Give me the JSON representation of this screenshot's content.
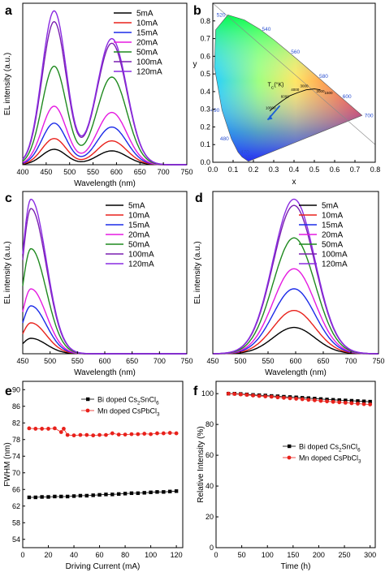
{
  "chart_data": [
    {
      "panel": "a",
      "type": "line",
      "xlabel": "Wavelength (nm)",
      "ylabel": "EL intensity (a.u.)",
      "xlim": [
        400,
        750
      ],
      "xticks": [
        400,
        450,
        500,
        550,
        600,
        650,
        700,
        750
      ],
      "ylim": [
        0,
        1.05
      ],
      "peaks": [
        467,
        590
      ],
      "series": [
        {
          "name": "5mA",
          "color": "#000000",
          "peak1": 0.1,
          "peak2": 0.09
        },
        {
          "name": "10mA",
          "color": "#e8211b",
          "peak1": 0.17,
          "peak2": 0.155
        },
        {
          "name": "15mA",
          "color": "#1b2be8",
          "peak1": 0.27,
          "peak2": 0.245
        },
        {
          "name": "20mA",
          "color": "#e51ae0",
          "peak1": 0.38,
          "peak2": 0.34
        },
        {
          "name": "50mA",
          "color": "#1f8a1f",
          "peak1": 0.64,
          "peak2": 0.57
        },
        {
          "name": "100mA",
          "color": "#7a1fb0",
          "peak1": 0.93,
          "peak2": 0.79
        },
        {
          "name": "120mA",
          "color": "#8a2be2",
          "peak1": 1.0,
          "peak2": 0.82
        }
      ]
    },
    {
      "panel": "b",
      "type": "scatter",
      "xlabel": "x",
      "ylabel": "y",
      "xlim": [
        0,
        0.8
      ],
      "ylim": [
        0,
        0.9
      ],
      "xticks": [
        "0.0",
        "0.1",
        "0.2",
        "0.3",
        "0.4",
        "0.5",
        "0.6",
        "0.7",
        "0.8"
      ],
      "yticks": [
        "0.0",
        "0.1",
        "0.2",
        "0.3",
        "0.4",
        "0.5",
        "0.6",
        "0.7",
        "0.8"
      ],
      "wavelength_labels": [
        {
          "text": "460",
          "x": 0.144,
          "y": 0.03
        },
        {
          "text": "470",
          "x": 0.124,
          "y": 0.058
        },
        {
          "text": "480",
          "x": 0.091,
          "y": 0.133
        },
        {
          "text": "490",
          "x": 0.045,
          "y": 0.295
        },
        {
          "text": "520",
          "x": 0.074,
          "y": 0.834
        },
        {
          "text": "540",
          "x": 0.23,
          "y": 0.754
        },
        {
          "text": "560",
          "x": 0.373,
          "y": 0.624
        },
        {
          "text": "580",
          "x": 0.512,
          "y": 0.487
        },
        {
          "text": "600",
          "x": 0.627,
          "y": 0.372
        },
        {
          "text": "700",
          "x": 0.735,
          "y": 0.265
        }
      ],
      "planckian_label": "T",
      "planckian_label_sub": "C",
      "planckian_label_unit": "(°K)",
      "planckian_temps": [
        "10000",
        "6000",
        "4000",
        "3000",
        "2000",
        "1500"
      ],
      "arrow_from": [
        0.33,
        0.32
      ],
      "arrow_to": [
        0.27,
        0.24
      ]
    },
    {
      "panel": "c",
      "type": "line",
      "xlabel": "Wavelength (nm)",
      "ylabel": "EL intensity (a.u.)",
      "xlim": [
        450,
        750
      ],
      "xticks": [
        450,
        500,
        550,
        600,
        650,
        700,
        750
      ],
      "ylim": [
        0,
        1.05
      ],
      "peak": 465,
      "series": [
        {
          "name": "5mA",
          "color": "#000000",
          "value": 0.1
        },
        {
          "name": "10mA",
          "color": "#e8211b",
          "value": 0.2
        },
        {
          "name": "15mA",
          "color": "#1b2be8",
          "value": 0.31
        },
        {
          "name": "20mA",
          "color": "#e51ae0",
          "value": 0.42
        },
        {
          "name": "50mA",
          "color": "#1f8a1f",
          "value": 0.68
        },
        {
          "name": "100mA",
          "color": "#7a1fb0",
          "value": 0.94
        },
        {
          "name": "120mA",
          "color": "#8a2be2",
          "value": 1.0
        }
      ]
    },
    {
      "panel": "d",
      "type": "line",
      "xlabel": "Wavelength (nm)",
      "ylabel": "EL intensity (a.u.)",
      "xlim": [
        450,
        750
      ],
      "xticks": [
        450,
        500,
        550,
        600,
        650,
        700,
        750
      ],
      "ylim": [
        0,
        1.05
      ],
      "peak": 597,
      "series": [
        {
          "name": "5mA",
          "color": "#000000",
          "value": 0.17
        },
        {
          "name": "10mA",
          "color": "#e8211b",
          "value": 0.28
        },
        {
          "name": "15mA",
          "color": "#1b2be8",
          "value": 0.42
        },
        {
          "name": "20mA",
          "color": "#e51ae0",
          "value": 0.55
        },
        {
          "name": "50mA",
          "color": "#1f8a1f",
          "value": 0.75
        },
        {
          "name": "100mA",
          "color": "#7a1fb0",
          "value": 0.96
        },
        {
          "name": "120mA",
          "color": "#8a2be2",
          "value": 1.0
        }
      ]
    },
    {
      "panel": "e",
      "type": "scatter",
      "xlabel": "Driving Current (mA)",
      "ylabel": "FWHM (nm)",
      "xlim": [
        0,
        125
      ],
      "ylim": [
        52,
        92
      ],
      "xticks": [
        0,
        20,
        40,
        60,
        80,
        100,
        120
      ],
      "yticks": [
        54,
        58,
        62,
        66,
        70,
        74,
        78,
        82,
        86,
        90
      ],
      "legend": [
        {
          "text": "Bi doped Cs",
          "sub": "2",
          "text2": "SnCl",
          "sub2": "6"
        },
        {
          "text": "Mn doped CsPbCl",
          "sub": "3",
          "text2": "",
          "sub2": ""
        }
      ],
      "series": [
        {
          "name": "Bi doped Cs2SnCl6",
          "color": "#000000",
          "marker": "square",
          "x": [
            5,
            10,
            15,
            20,
            25,
            30,
            35,
            40,
            45,
            50,
            55,
            60,
            65,
            70,
            75,
            80,
            85,
            90,
            95,
            100,
            105,
            110,
            115,
            120
          ],
          "y": [
            64.1,
            64.1,
            64.2,
            64.2,
            64.3,
            64.3,
            64.3,
            64.4,
            64.5,
            64.5,
            64.6,
            64.7,
            64.8,
            64.8,
            64.9,
            65.0,
            65.1,
            65.1,
            65.2,
            65.3,
            65.4,
            65.4,
            65.5,
            65.6
          ]
        },
        {
          "name": "Mn doped CsPbCl3",
          "color": "#e8211b",
          "marker": "circle",
          "x": [
            5,
            10,
            15,
            20,
            25,
            30,
            32,
            35,
            40,
            45,
            50,
            55,
            60,
            65,
            70,
            75,
            80,
            85,
            90,
            95,
            100,
            105,
            110,
            115,
            120
          ],
          "y": [
            80.7,
            80.6,
            80.6,
            80.6,
            80.7,
            79.8,
            80.6,
            79.1,
            79.0,
            79.1,
            79.1,
            79.0,
            79.1,
            79.1,
            79.5,
            79.2,
            79.2,
            79.3,
            79.3,
            79.4,
            79.3,
            79.5,
            79.5,
            79.6,
            79.5
          ]
        }
      ]
    },
    {
      "panel": "f",
      "type": "scatter",
      "xlabel": "Time (h)",
      "ylabel": "Relative Intensity (%)",
      "xlim": [
        0,
        310
      ],
      "ylim": [
        0,
        108
      ],
      "xticks": [
        0,
        50,
        100,
        150,
        200,
        250,
        300
      ],
      "yticks": [
        0,
        20,
        40,
        60,
        80,
        100
      ],
      "legend": [
        {
          "text": "Bi  doped Cs",
          "sub": "2",
          "text2": "SnCl",
          "sub2": "6"
        },
        {
          "text": "Mn doped CsPbCl",
          "sub": "3",
          "text2": "",
          "sub2": ""
        }
      ],
      "series": [
        {
          "name": "Bi doped Cs2SnCl6",
          "color": "#000000",
          "marker": "square",
          "x": [
            24,
            36,
            48,
            60,
            72,
            84,
            96,
            108,
            120,
            132,
            144,
            156,
            168,
            180,
            192,
            204,
            216,
            228,
            240,
            252,
            264,
            276,
            288,
            300
          ],
          "y": [
            100,
            100,
            99.8,
            99.5,
            99.2,
            99,
            98.8,
            98.5,
            98.3,
            98,
            97.8,
            97.6,
            97.3,
            97.1,
            96.8,
            96.5,
            96.2,
            96,
            95.8,
            95.6,
            95.4,
            95.2,
            95,
            94.8
          ]
        },
        {
          "name": "Mn doped CsPbCl3",
          "color": "#e8211b",
          "marker": "circle",
          "x": [
            24,
            36,
            48,
            60,
            72,
            84,
            96,
            108,
            120,
            132,
            144,
            156,
            168,
            180,
            192,
            204,
            216,
            228,
            240,
            252,
            264,
            276,
            288,
            300
          ],
          "y": [
            100,
            99.8,
            99.5,
            99.2,
            98.8,
            98.5,
            98.2,
            98,
            97.6,
            97.3,
            97,
            96.7,
            96.4,
            96,
            95.7,
            95.3,
            95,
            94.7,
            94.4,
            94.1,
            93.8,
            93.5,
            93.2,
            93
          ]
        }
      ]
    }
  ],
  "panel_letters": [
    "a",
    "b",
    "c",
    "d",
    "e",
    "f"
  ]
}
